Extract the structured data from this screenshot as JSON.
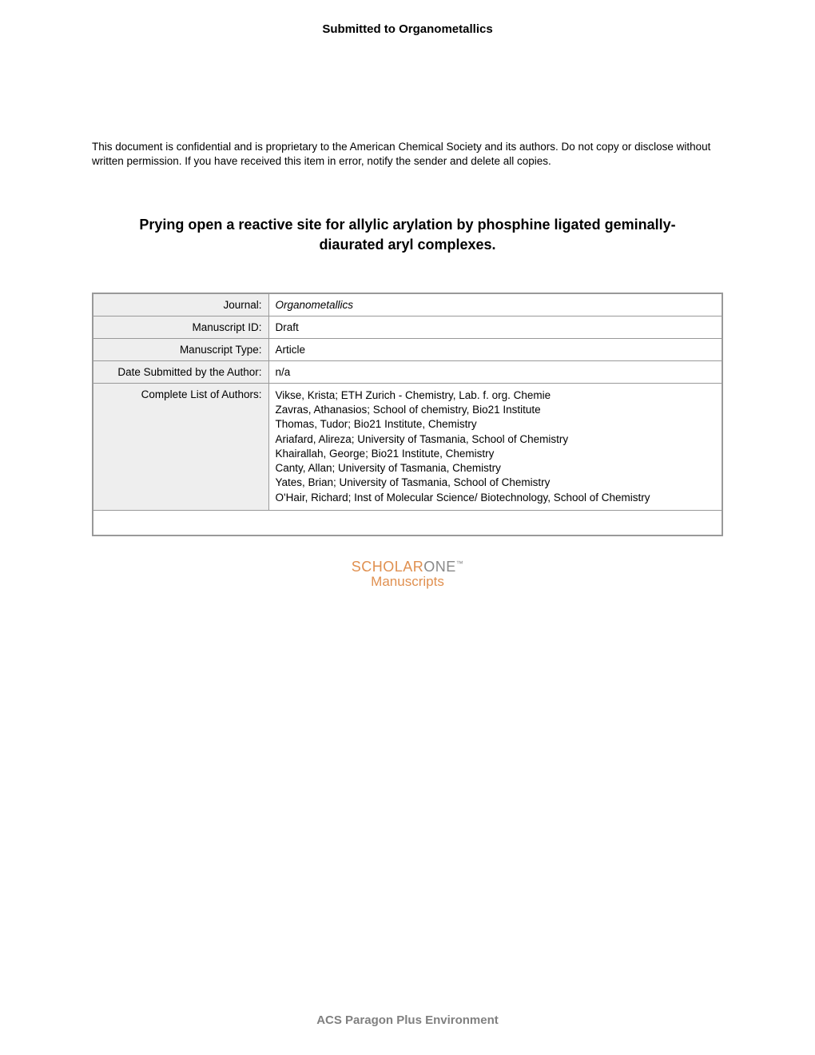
{
  "header": "Submitted to Organometallics",
  "confidential": "This document is confidential and is proprietary to the American Chemical Society and its authors. Do not copy or disclose without written permission. If you have received this item in error, notify the sender and delete all copies.",
  "title": "Prying open a reactive site for allylic arylation by phosphine ligated geminally-diaurated aryl complexes.",
  "table": {
    "rows": [
      {
        "label": "Journal:",
        "value": "Organometallics",
        "italic": true
      },
      {
        "label": "Manuscript ID:",
        "value": "Draft",
        "italic": false
      },
      {
        "label": "Manuscript Type:",
        "value": "Article",
        "italic": false
      },
      {
        "label": "Date Submitted by the Author:",
        "value": "n/a",
        "italic": false
      },
      {
        "label": "Complete List of Authors:",
        "value": "Vikse, Krista; ETH Zurich - Chemistry, Lab. f. org. Chemie\nZavras, Athanasios; School of chemistry, Bio21 Institute\nThomas, Tudor; Bio21 Institute, Chemistry\nAriafard, Alireza; University of Tasmania, School of Chemistry\nKhairallah, George; Bio21 Institute, Chemistry\nCanty, Allan; University of Tasmania, Chemistry\nYates, Brian; University of Tasmania, School of Chemistry\nO'Hair, Richard; Inst of Molecular Science/ Biotechnology, School of Chemistry",
        "italic": false
      }
    ]
  },
  "logo": {
    "scholar": "SCHOLAR",
    "one": "ONE",
    "tm": "™",
    "manuscripts": "Manuscripts"
  },
  "footer": "ACS Paragon Plus Environment",
  "colors": {
    "text": "#000000",
    "border": "#999999",
    "label_bg": "#eeeeee",
    "logo_orange": "#e09050",
    "logo_gray": "#888888",
    "footer_gray": "#808080"
  }
}
